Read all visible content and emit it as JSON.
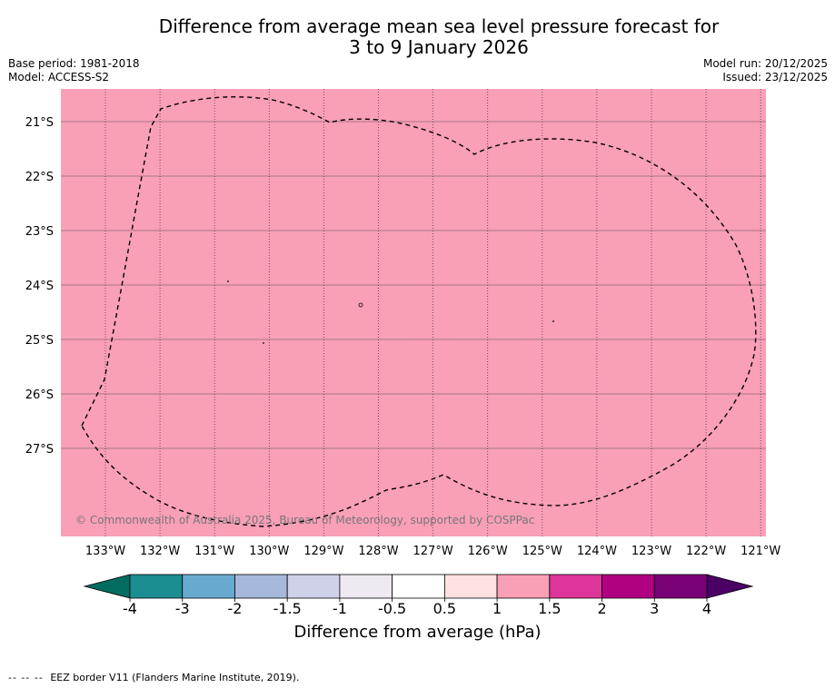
{
  "title_line1": "Difference from average mean sea level pressure forecast for",
  "title_line2": "3 to 9 January 2026",
  "base_period": "Base period: 1981-2018",
  "model": "Model: ACCESS-S2",
  "model_run": "Model run: 20/12/2025",
  "issued": "Issued: 23/12/2025",
  "map": {
    "fill_color": "#f99fb6",
    "lat_labels": [
      "21°S",
      "22°S",
      "23°S",
      "24°S",
      "25°S",
      "26°S",
      "27°S"
    ],
    "lon_labels": [
      "133°W",
      "132°W",
      "131°W",
      "130°W",
      "129°W",
      "128°W",
      "127°W",
      "126°W",
      "125°W",
      "124°W",
      "123°W",
      "122°W",
      "121°W"
    ],
    "copyright": "© Commonwealth of Australia 2025, Bureau of Meteorology, supported by COSPPac"
  },
  "colorbar": {
    "tick_labels": [
      "-4",
      "-3",
      "-2",
      "-1.5",
      "-1",
      "-0.5",
      "0.5",
      "1",
      "1.5",
      "2",
      "3",
      "4"
    ],
    "colors": [
      "#1b8e92",
      "#68aacf",
      "#a7b9da",
      "#cfd1e8",
      "#efeaf1",
      "#ffffff",
      "#fee1e0",
      "#f99fb6",
      "#dd359a",
      "#b10183",
      "#7a0277"
    ],
    "extend_low_color": "#036c60",
    "extend_high_color": "#4b0065",
    "label": "Difference from average (hPa)"
  },
  "legend_dash": "-- -- --",
  "legend_text": "EEZ border V11 (Flanders Marine Institute, 2019)."
}
